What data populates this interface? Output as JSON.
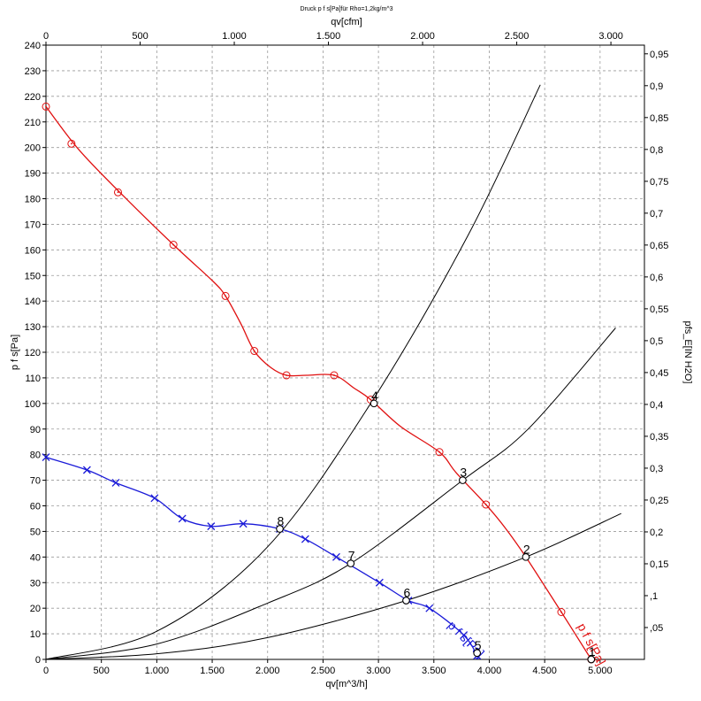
{
  "chart_data": {
    "type": "line",
    "title": "Druck p f s[Pa]für Rho=1,2kg/m^3",
    "xlabel": "qv[m^3/h]",
    "x2label": "qv[cfm]",
    "ylabel": "p f s[Pa]",
    "y2label": "pfs_E[IN H2O]",
    "xlim": [
      0,
      5400
    ],
    "x2lim": [
      0,
      3178
    ],
    "ylim": [
      0,
      240
    ],
    "y2lim": [
      0,
      0.9636
    ],
    "grid": true,
    "x_ticks": [
      {
        "value": 0,
        "label": "0"
      },
      {
        "value": 500,
        "label": "500"
      },
      {
        "value": 1000,
        "label": "1.000"
      },
      {
        "value": 1500,
        "label": "1.500"
      },
      {
        "value": 2000,
        "label": "2.000"
      },
      {
        "value": 2500,
        "label": "2.500"
      },
      {
        "value": 3000,
        "label": "3.000"
      },
      {
        "value": 3500,
        "label": "3.500"
      },
      {
        "value": 4000,
        "label": "4.000"
      },
      {
        "value": 4500,
        "label": "4.500"
      },
      {
        "value": 5000,
        "label": "5.000"
      }
    ],
    "x2_ticks": [
      {
        "value": 0,
        "label": "0"
      },
      {
        "value": 500,
        "label": "500"
      },
      {
        "value": 1000,
        "label": "1.000"
      },
      {
        "value": 1500,
        "label": "1.500"
      },
      {
        "value": 2000,
        "label": "2.000"
      },
      {
        "value": 2500,
        "label": "2.500"
      },
      {
        "value": 3000,
        "label": "3.000"
      }
    ],
    "y_ticks": [
      0,
      10,
      20,
      30,
      40,
      50,
      60,
      70,
      80,
      90,
      100,
      110,
      120,
      130,
      140,
      150,
      160,
      170,
      180,
      190,
      200,
      210,
      220,
      230,
      240
    ],
    "y2_ticks": [
      {
        "value": 0.05,
        "label": ",05"
      },
      {
        "value": 0.1,
        "label": ",1"
      },
      {
        "value": 0.15,
        "label": "0,15"
      },
      {
        "value": 0.2,
        "label": "0,2"
      },
      {
        "value": 0.25,
        "label": "0,25"
      },
      {
        "value": 0.3,
        "label": "0,3"
      },
      {
        "value": 0.35,
        "label": "0,35"
      },
      {
        "value": 0.4,
        "label": "0,4"
      },
      {
        "value": 0.45,
        "label": "0,45"
      },
      {
        "value": 0.5,
        "label": "0,5"
      },
      {
        "value": 0.55,
        "label": "0,55"
      },
      {
        "value": 0.6,
        "label": "0,6"
      },
      {
        "value": 0.65,
        "label": "0,65"
      },
      {
        "value": 0.7,
        "label": "0,7"
      },
      {
        "value": 0.75,
        "label": "0,75"
      },
      {
        "value": 0.8,
        "label": "0,8"
      },
      {
        "value": 0.85,
        "label": "0,85"
      },
      {
        "value": 0.9,
        "label": "0,9"
      },
      {
        "value": 0.95,
        "label": "0,95"
      }
    ],
    "series": [
      {
        "name": "p f s[Pa]",
        "color": "#e01010",
        "marker": "circle-dot",
        "points": [
          [
            0,
            216
          ],
          [
            230,
            201.5
          ],
          [
            650,
            182.5
          ],
          [
            1150,
            162
          ],
          [
            1620,
            142
          ],
          [
            1880,
            120.5
          ],
          [
            2170,
            111
          ],
          [
            2600,
            111
          ],
          [
            2930,
            101.5
          ],
          [
            3550,
            81
          ],
          [
            3970,
            60.5
          ],
          [
            4650,
            18.5
          ],
          [
            4920,
            0
          ]
        ],
        "curve": [
          [
            0,
            216
          ],
          [
            300,
            199
          ],
          [
            700,
            181
          ],
          [
            1150,
            162
          ],
          [
            1500,
            148
          ],
          [
            1620,
            142
          ],
          [
            1760,
            131
          ],
          [
            1880,
            120.5
          ],
          [
            2030,
            114
          ],
          [
            2170,
            111
          ],
          [
            2350,
            111
          ],
          [
            2600,
            111
          ],
          [
            2780,
            106
          ],
          [
            2930,
            101.5
          ],
          [
            3200,
            91
          ],
          [
            3550,
            81
          ],
          [
            3700,
            73
          ],
          [
            3970,
            60.5
          ],
          [
            4150,
            51
          ],
          [
            4330,
            40
          ],
          [
            4650,
            18.5
          ],
          [
            4920,
            0
          ]
        ]
      },
      {
        "name": "p f s[Pa]",
        "color": "#1a1ad8",
        "marker": "x",
        "points": [
          [
            0,
            79
          ],
          [
            370,
            74
          ],
          [
            630,
            69
          ],
          [
            980,
            63
          ],
          [
            1230,
            55
          ],
          [
            1490,
            52
          ],
          [
            1780,
            53
          ],
          [
            2110,
            51
          ],
          [
            2340,
            47
          ],
          [
            2620,
            40
          ],
          [
            3010,
            30
          ],
          [
            3270,
            23
          ],
          [
            3460,
            20
          ],
          [
            3770,
            9.5
          ],
          [
            3890,
            1.5
          ]
        ],
        "curve": [
          [
            0,
            79
          ],
          [
            370,
            74
          ],
          [
            630,
            69
          ],
          [
            980,
            63
          ],
          [
            1230,
            55
          ],
          [
            1490,
            52
          ],
          [
            1780,
            53
          ],
          [
            2110,
            51
          ],
          [
            2340,
            47
          ],
          [
            2620,
            40
          ],
          [
            3010,
            30
          ],
          [
            3270,
            23
          ],
          [
            3460,
            20
          ],
          [
            3770,
            9.5
          ],
          [
            3890,
            1.5
          ],
          [
            3890,
            0
          ]
        ]
      }
    ],
    "system_curves": [
      {
        "points": [
          [
            0,
            0
          ],
          [
            1000,
            11
          ],
          [
            2000,
            44
          ],
          [
            2930,
            100
          ],
          [
            3800,
            165
          ],
          [
            4460,
            224.5
          ]
        ]
      },
      {
        "points": [
          [
            0,
            0
          ],
          [
            1000,
            6
          ],
          [
            2000,
            22
          ],
          [
            2750,
            37.5
          ],
          [
            3760,
            70
          ],
          [
            4350,
            90
          ],
          [
            5140,
            129.5
          ]
        ]
      },
      {
        "points": [
          [
            0,
            0
          ],
          [
            1000,
            2.2
          ],
          [
            2000,
            8.5
          ],
          [
            3250,
            23
          ],
          [
            4330,
            40
          ],
          [
            5190,
            57
          ]
        ]
      }
    ],
    "operating_points": [
      {
        "label": "1",
        "x": 4920,
        "y": 0
      },
      {
        "label": "2",
        "x": 4330,
        "y": 40
      },
      {
        "label": "3",
        "x": 3760,
        "y": 70
      },
      {
        "label": "4",
        "x": 2960,
        "y": 100
      },
      {
        "label": "5",
        "x": 3890,
        "y": 2.5
      },
      {
        "label": "6",
        "x": 3250,
        "y": 23
      },
      {
        "label": "7",
        "x": 2750,
        "y": 37.5
      },
      {
        "label": "8",
        "x": 2110,
        "y": 51
      }
    ]
  }
}
